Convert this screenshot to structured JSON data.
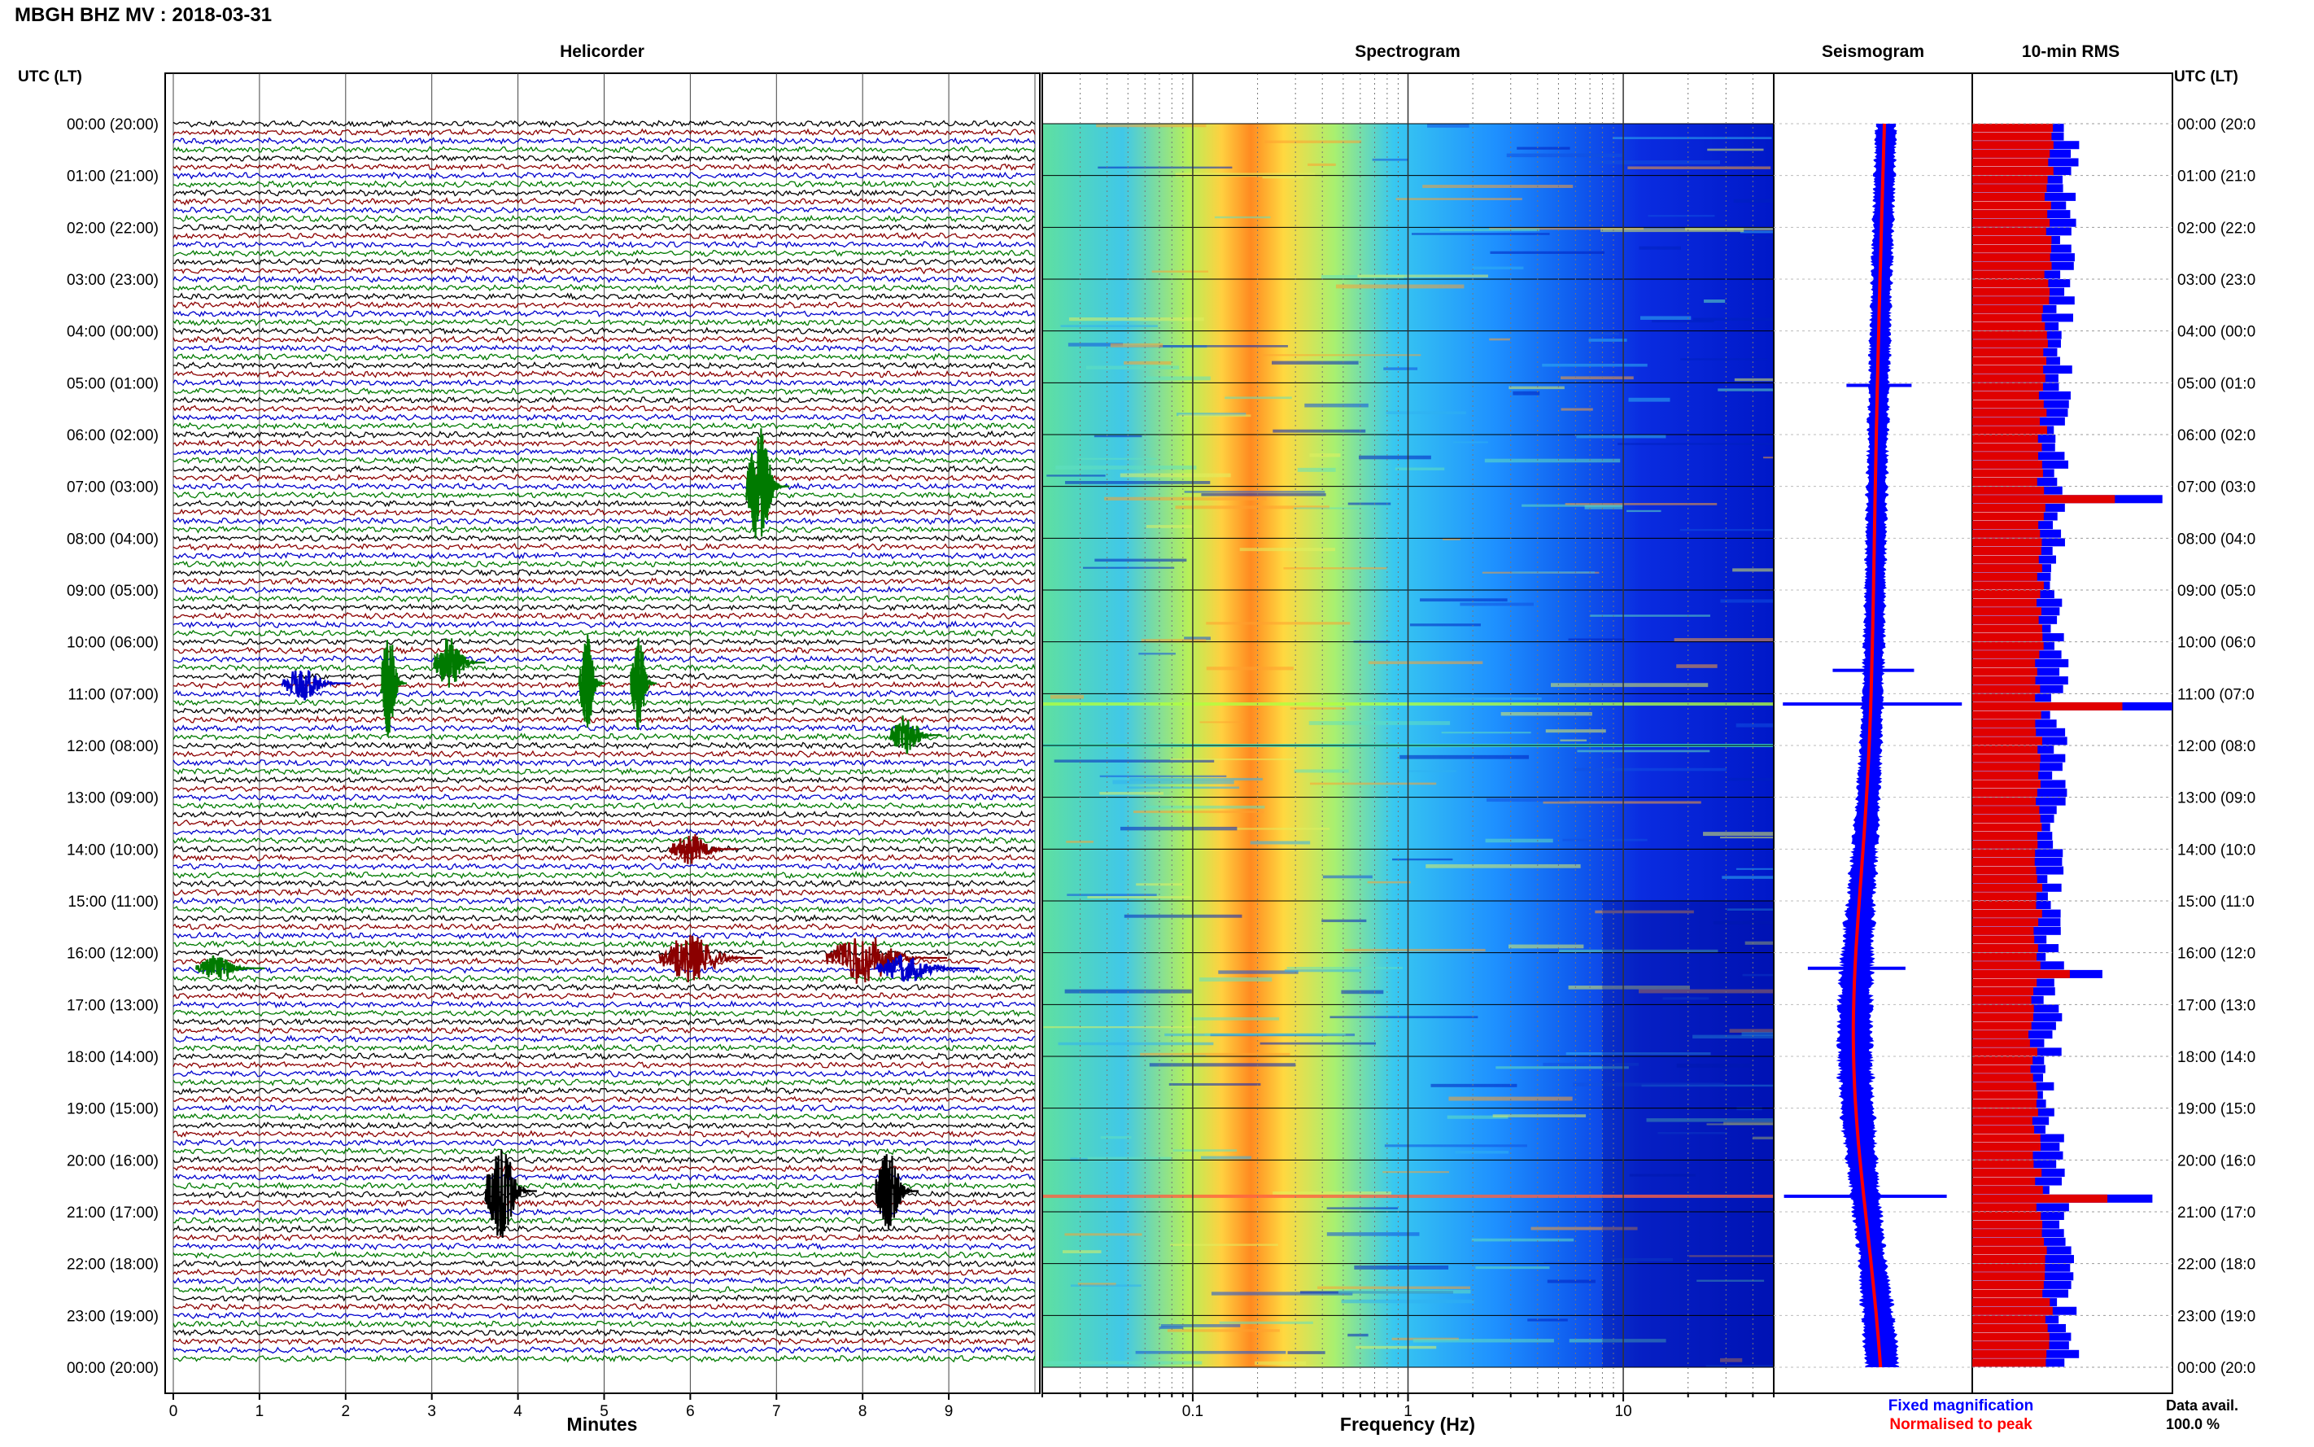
{
  "title": "MBGH BHZ MV : 2018-03-31",
  "panels": {
    "helicorder": "Helicorder",
    "spectrogram": "Spectrogram",
    "seismogram": "Seismogram",
    "rms": "10-min RMS"
  },
  "utc_header": "UTC (LT)",
  "time_labels": [
    "00:00 (20:00)",
    "01:00 (21:00)",
    "02:00 (22:00)",
    "03:00 (23:00)",
    "04:00 (00:00)",
    "05:00 (01:00)",
    "06:00 (02:00)",
    "07:00 (03:00)",
    "08:00 (04:00)",
    "09:00 (05:00)",
    "10:00 (06:00)",
    "11:00 (07:00)",
    "12:00 (08:00)",
    "13:00 (09:00)",
    "14:00 (10:00)",
    "15:00 (11:00)",
    "16:00 (12:00)",
    "17:00 (13:00)",
    "18:00 (14:00)",
    "19:00 (15:00)",
    "20:00 (16:00)",
    "21:00 (17:00)",
    "22:00 (18:00)",
    "23:00 (19:00)",
    "00:00 (20:00)"
  ],
  "right_time_labels": [
    "00:00 (20:0",
    "01:00 (21:0",
    "02:00 (22:0",
    "03:00 (23:0",
    "04:00 (00:0",
    "05:00 (01:0",
    "06:00 (02:0",
    "07:00 (03:0",
    "08:00 (04:0",
    "09:00 (05:0",
    "10:00 (06:0",
    "11:00 (07:0",
    "12:00 (08:0",
    "13:00 (09:0",
    "14:00 (10:0",
    "15:00 (11:0",
    "16:00 (12:0",
    "17:00 (13:0",
    "18:00 (14:0",
    "19:00 (15:0",
    "20:00 (16:0",
    "21:00 (17:0",
    "22:00 (18:0",
    "23:00 (19:0",
    "00:00 (20:0"
  ],
  "helicorder_xlabel": "Minutes",
  "helicorder_ticks": [
    "0",
    "1",
    "2",
    "3",
    "4",
    "5",
    "6",
    "7",
    "8",
    "9"
  ],
  "spectrogram_xlabel": "Frequency (Hz)",
  "spectrogram_ticks": [
    "0.1",
    "1",
    "10"
  ],
  "legend": {
    "fixed": "Fixed magnification",
    "normalised": "Normalised to peak"
  },
  "data_avail": {
    "label": "Data avail.",
    "value": "100.0 %"
  },
  "colors": {
    "trace_cycle": [
      "#000000",
      "#8b0000",
      "#0000cc",
      "#007a00"
    ],
    "fixed": "#0000ff",
    "normalised": "#ff0000",
    "spectro_low": "#00008b",
    "spectro_high": "#ff3000"
  },
  "chart_data": [
    {
      "type": "line",
      "name": "helicorder",
      "title": "Helicorder",
      "xlabel": "Minutes",
      "xlim": [
        0,
        10
      ],
      "rows_per_hour": 6,
      "row_minutes": 10,
      "events": [
        {
          "hour": 7.0,
          "minute": 6.8,
          "amp": 2.2,
          "dur": 0.5,
          "color": "#007a00"
        },
        {
          "hour": 10.4,
          "minute": 3.2,
          "amp": 1.0,
          "dur": 0.6,
          "color": "#007a00"
        },
        {
          "hour": 10.8,
          "minute": 2.5,
          "amp": 2.0,
          "dur": 0.3,
          "color": "#007a00"
        },
        {
          "hour": 10.8,
          "minute": 4.8,
          "amp": 1.8,
          "dur": 0.3,
          "color": "#007a00"
        },
        {
          "hour": 10.8,
          "minute": 5.4,
          "amp": 1.8,
          "dur": 0.3,
          "color": "#007a00"
        },
        {
          "hour": 10.8,
          "minute": 1.5,
          "amp": 0.6,
          "dur": 0.8,
          "color": "#0000cc"
        },
        {
          "hour": 11.8,
          "minute": 8.5,
          "amp": 0.8,
          "dur": 0.6,
          "color": "#007a00"
        },
        {
          "hour": 14.0,
          "minute": 6.0,
          "amp": 0.6,
          "dur": 0.8,
          "color": "#8b0000"
        },
        {
          "hour": 16.1,
          "minute": 6.0,
          "amp": 0.9,
          "dur": 1.2,
          "color": "#8b0000"
        },
        {
          "hour": 16.1,
          "minute": 8.0,
          "amp": 1.0,
          "dur": 1.4,
          "color": "#8b0000"
        },
        {
          "hour": 16.3,
          "minute": 0.5,
          "amp": 0.5,
          "dur": 0.8,
          "color": "#007a00"
        },
        {
          "hour": 16.3,
          "minute": 8.5,
          "amp": 0.5,
          "dur": 1.2,
          "color": "#0000cc"
        },
        {
          "hour": 20.6,
          "minute": 3.8,
          "amp": 1.8,
          "dur": 0.6,
          "color": "#000000"
        },
        {
          "hour": 20.6,
          "minute": 8.3,
          "amp": 1.6,
          "dur": 0.5,
          "color": "#000000"
        }
      ]
    },
    {
      "type": "heatmap",
      "name": "spectrogram",
      "title": "Spectrogram",
      "xlabel": "Frequency (Hz)",
      "xscale": "log",
      "xlim": [
        0.02,
        50
      ],
      "peak_band_hz": [
        0.2,
        0.45
      ],
      "events": [
        {
          "hour": 11.2,
          "color": "#b0ff40"
        },
        {
          "hour": 12.0,
          "color": "#40e0c0"
        },
        {
          "hour": 20.7,
          "color": "#ff6040"
        }
      ]
    },
    {
      "type": "area",
      "name": "seismogram",
      "title": "Seismogram",
      "series": [
        {
          "name": "Fixed magnification",
          "color": "#0000ff"
        },
        {
          "name": "Normalised to peak",
          "color": "#ff0000"
        }
      ]
    },
    {
      "type": "bar",
      "name": "rms",
      "title": "10-min RMS",
      "orientation": "horizontal",
      "bins": 144,
      "spikes": [
        {
          "hour": 7.2,
          "value": 0.95
        },
        {
          "hour": 11.2,
          "value": 1.0
        },
        {
          "hour": 16.3,
          "value": 0.65
        },
        {
          "hour": 20.7,
          "value": 0.9
        }
      ]
    }
  ]
}
